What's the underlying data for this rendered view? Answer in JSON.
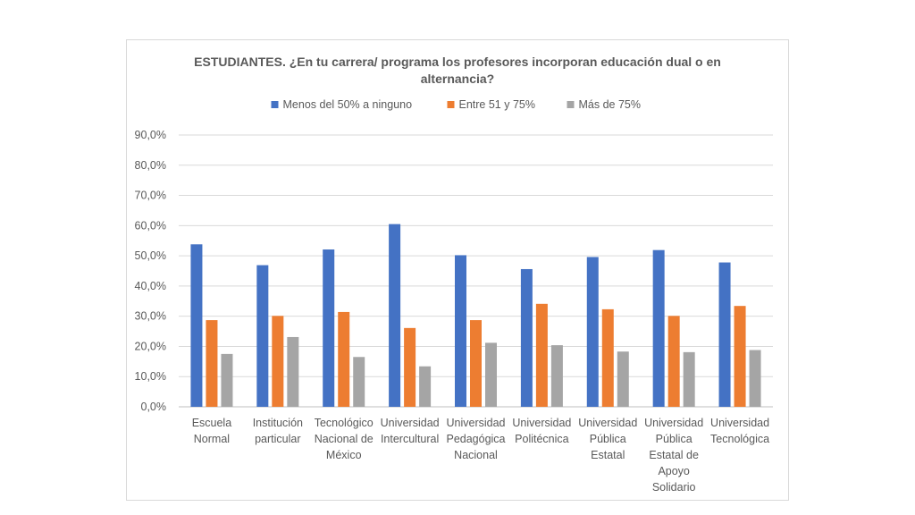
{
  "chart_data": {
    "type": "bar",
    "title": "ESTUDIANTES. ¿En tu carrera/ programa los profesores incorporan educación dual o en\nalternancia?",
    "categories": [
      "Escuela Normal",
      "Institución particular",
      "Tecnológico Nacional de México",
      "Universidad Intercultural",
      "Universidad Pedagógica Nacional",
      "Universidad Politécnica",
      "Universidad Pública Estatal",
      "Universidad Pública Estatal de Apoyo Solidario",
      "Universidad Tecnológica"
    ],
    "category_lines": [
      [
        "Escuela",
        "Normal"
      ],
      [
        "Institución",
        "particular"
      ],
      [
        "Tecnológico",
        "Nacional de",
        "México"
      ],
      [
        "Universidad",
        "Intercultural"
      ],
      [
        "Universidad",
        "Pedagógica",
        "Nacional"
      ],
      [
        "Universidad",
        "Politécnica"
      ],
      [
        "Universidad",
        "Pública",
        "Estatal"
      ],
      [
        "Universidad",
        "Pública",
        "Estatal de",
        "Apoyo",
        "Solidario"
      ],
      [
        "Universidad",
        "Tecnológica"
      ]
    ],
    "series": [
      {
        "name": "Menos del 50% a ninguno",
        "color": "#4472c4",
        "values": [
          53.8,
          46.9,
          52.1,
          60.5,
          50.2,
          45.6,
          49.6,
          51.9,
          47.8
        ]
      },
      {
        "name": "Entre 51 y 75%",
        "color": "#ed7d31",
        "values": [
          28.7,
          30.1,
          31.4,
          26.1,
          28.7,
          34.1,
          32.3,
          30.1,
          33.4
        ]
      },
      {
        "name": "Más de 75%",
        "color": "#a5a5a5",
        "values": [
          17.5,
          23.1,
          16.5,
          13.4,
          21.2,
          20.4,
          18.3,
          18.1,
          18.8
        ]
      }
    ],
    "ylim": [
      0,
      90
    ],
    "yticks": [
      "0,0%",
      "10,0%",
      "20,0%",
      "30,0%",
      "40,0%",
      "50,0%",
      "60,0%",
      "70,0%",
      "80,0%",
      "90,0%"
    ],
    "grid": true,
    "legend": "top"
  }
}
